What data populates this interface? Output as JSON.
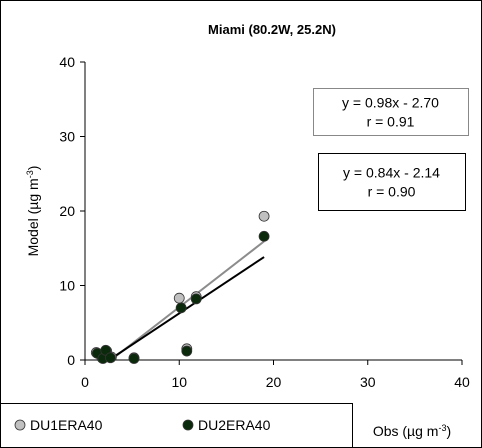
{
  "chart_data": {
    "type": "scatter",
    "title": "Miami (80.2W, 25.2N)",
    "y_label": "Model (µg m",
    "y_label_sup": "-3",
    "y_label_end": ")",
    "x_label": "Obs (µg m",
    "x_label_sup": "-3",
    "x_label_end": ")",
    "xlim": [
      0,
      40
    ],
    "xticks": [
      0,
      10,
      20,
      30,
      40
    ],
    "ylim": [
      0,
      40
    ],
    "yticks": [
      0,
      10,
      20,
      30,
      40
    ],
    "series": [
      {
        "name": "DU1ERA40",
        "color": "#c0c0c0",
        "line_color": "#8c8c8c",
        "x": [
          1.2,
          1.8,
          2.3,
          2.8,
          5.2,
          10.0,
          10.8,
          11.8,
          19.0
        ],
        "values": [
          1.0,
          0.3,
          1.2,
          0.4,
          0.3,
          8.3,
          1.5,
          8.5,
          19.3
        ],
        "fit": {
          "slope": 0.98,
          "intercept": -2.7,
          "label": "y = 0.98x - 2.70",
          "r": 0.91,
          "r_label": "r = 0.91"
        }
      },
      {
        "name": "DU2ERA40",
        "color": "#0b2a0b",
        "line_color": "#000000",
        "x": [
          1.3,
          1.9,
          2.2,
          2.7,
          5.2,
          10.2,
          10.8,
          11.8,
          19.0
        ],
        "values": [
          0.9,
          0.2,
          1.3,
          0.3,
          0.2,
          7.0,
          1.2,
          8.2,
          16.6
        ],
        "fit": {
          "slope": 0.84,
          "intercept": -2.14,
          "label": "y = 0.84x - 2.14",
          "r": 0.9,
          "r_label": "r = 0.90"
        }
      }
    ]
  }
}
